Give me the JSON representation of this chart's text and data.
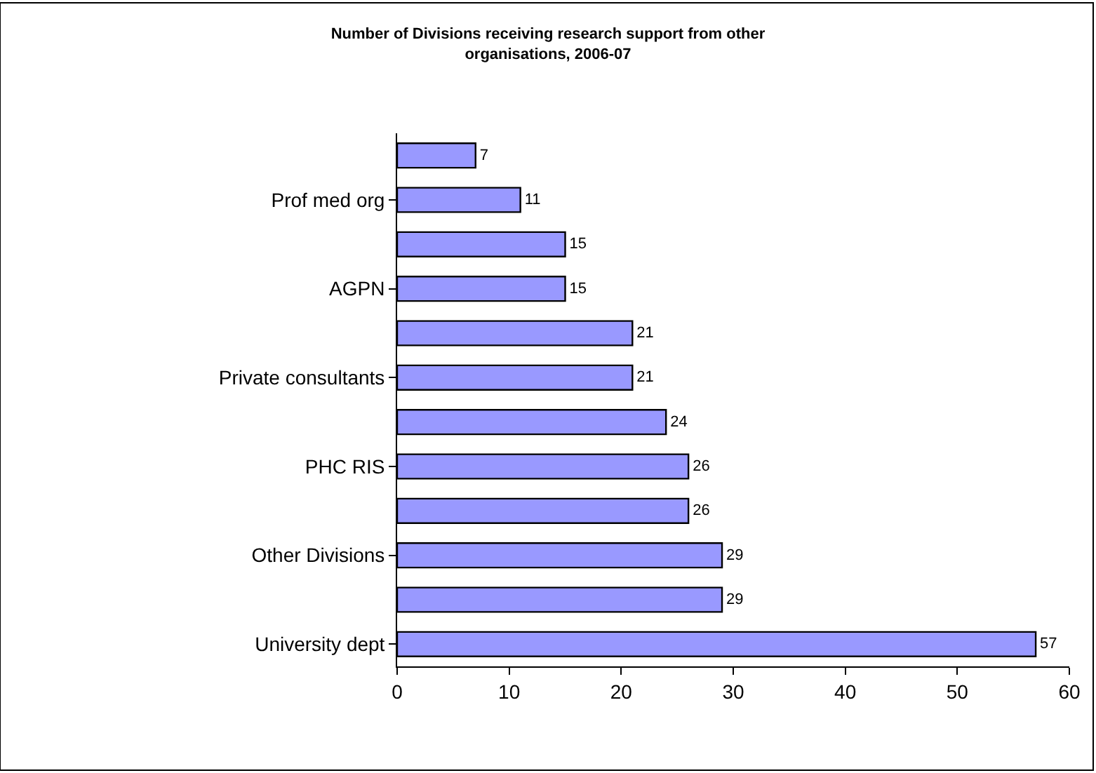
{
  "chart_data": {
    "type": "bar",
    "orientation": "horizontal",
    "title": "Number of Divisions receiving research support from other organisations, 2006-07",
    "categories": [
      null,
      "Prof med org",
      null,
      "AGPN",
      null,
      "Private consultants",
      null,
      "PHC RIS",
      null,
      "Other Divisions",
      null,
      "University dept"
    ],
    "values": [
      7,
      11,
      15,
      15,
      21,
      21,
      24,
      26,
      26,
      29,
      29,
      57
    ],
    "color": "#9999ff",
    "data_labels": true,
    "xlim": [
      0,
      60
    ],
    "xticks": [
      0,
      10,
      20,
      30,
      40,
      50,
      60
    ],
    "grid": false,
    "legend": false
  }
}
